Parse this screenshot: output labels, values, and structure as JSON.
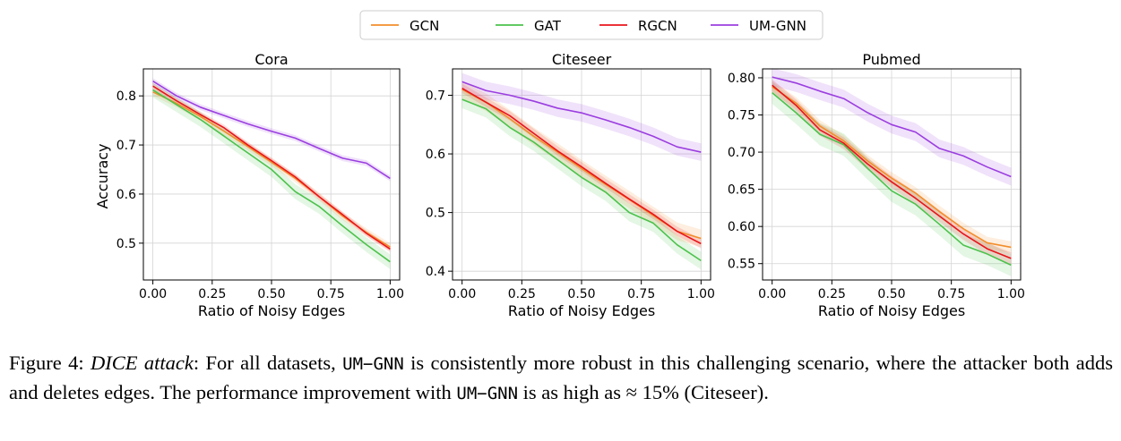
{
  "legend": {
    "entries": [
      {
        "name": "GCN",
        "color": "#f28e2b"
      },
      {
        "name": "GAT",
        "color": "#4cc24c"
      },
      {
        "name": "RGCN",
        "color": "#e8141b"
      },
      {
        "name": "UM-GNN",
        "color": "#9b3ee0"
      }
    ]
  },
  "chart_data": [
    {
      "type": "line",
      "title": "Cora",
      "xlabel": "Ratio of Noisy Edges",
      "ylabel": "Accuracy",
      "xlim": [
        -0.04,
        1.04
      ],
      "ylim": [
        0.425,
        0.855
      ],
      "xticks": [
        "0.00",
        "0.25",
        "0.50",
        "0.75",
        "1.00"
      ],
      "yticks": [
        "0.5",
        "0.6",
        "0.7",
        "0.8"
      ],
      "grid": true,
      "x": [
        0.0,
        0.1,
        0.2,
        0.3,
        0.4,
        0.5,
        0.6,
        0.7,
        0.8,
        0.9,
        1.0
      ],
      "series": [
        {
          "name": "GCN",
          "values": [
            0.808,
            0.785,
            0.758,
            0.728,
            0.697,
            0.665,
            0.632,
            0.595,
            0.555,
            0.522,
            0.492
          ],
          "band": 0.008
        },
        {
          "name": "GAT",
          "values": [
            0.812,
            0.782,
            0.752,
            0.718,
            0.684,
            0.65,
            0.605,
            0.575,
            0.535,
            0.497,
            0.462
          ],
          "band": 0.015
        },
        {
          "name": "RGCN",
          "values": [
            0.82,
            0.79,
            0.762,
            0.735,
            0.7,
            0.668,
            0.635,
            0.595,
            0.558,
            0.52,
            0.488
          ],
          "band": 0.006
        },
        {
          "name": "UM-GNN",
          "values": [
            0.83,
            0.8,
            0.777,
            0.76,
            0.743,
            0.728,
            0.714,
            0.693,
            0.673,
            0.663,
            0.632
          ],
          "band": 0.006
        }
      ]
    },
    {
      "type": "line",
      "title": "Citeseer",
      "xlabel": "Ratio of Noisy Edges",
      "ylabel": "",
      "xlim": [
        -0.04,
        1.04
      ],
      "ylim": [
        0.385,
        0.745
      ],
      "xticks": [
        "0.00",
        "0.25",
        "0.50",
        "0.75",
        "1.00"
      ],
      "yticks": [
        "0.4",
        "0.5",
        "0.6",
        "0.7"
      ],
      "grid": true,
      "x": [
        0.0,
        0.1,
        0.2,
        0.3,
        0.4,
        0.5,
        0.6,
        0.7,
        0.8,
        0.9,
        1.0
      ],
      "series": [
        {
          "name": "GCN",
          "values": [
            0.71,
            0.688,
            0.66,
            0.63,
            0.603,
            0.575,
            0.548,
            0.522,
            0.495,
            0.468,
            0.456
          ],
          "band": 0.015
        },
        {
          "name": "GAT",
          "values": [
            0.693,
            0.677,
            0.645,
            0.62,
            0.59,
            0.56,
            0.535,
            0.5,
            0.482,
            0.445,
            0.418
          ],
          "band": 0.015
        },
        {
          "name": "RGCN",
          "values": [
            0.712,
            0.688,
            0.665,
            0.635,
            0.605,
            0.578,
            0.55,
            0.523,
            0.497,
            0.468,
            0.447
          ],
          "band": 0.008
        },
        {
          "name": "UM-GNN",
          "values": [
            0.723,
            0.708,
            0.7,
            0.69,
            0.678,
            0.67,
            0.658,
            0.645,
            0.63,
            0.612,
            0.603
          ],
          "band": 0.015
        }
      ]
    },
    {
      "type": "line",
      "title": "Pubmed",
      "xlabel": "Ratio of Noisy Edges",
      "ylabel": "",
      "xlim": [
        -0.04,
        1.04
      ],
      "ylim": [
        0.528,
        0.812
      ],
      "xticks": [
        "0.00",
        "0.25",
        "0.50",
        "0.75",
        "1.00"
      ],
      "yticks": [
        "0.55",
        "0.60",
        "0.65",
        "0.70",
        "0.75",
        "0.80"
      ],
      "grid": true,
      "x": [
        0.0,
        0.1,
        0.2,
        0.3,
        0.4,
        0.5,
        0.6,
        0.7,
        0.8,
        0.9,
        1.0
      ],
      "series": [
        {
          "name": "GCN",
          "values": [
            0.788,
            0.766,
            0.735,
            0.715,
            0.688,
            0.665,
            0.645,
            0.62,
            0.597,
            0.578,
            0.572
          ],
          "band": 0.008
        },
        {
          "name": "GAT",
          "values": [
            0.78,
            0.753,
            0.724,
            0.71,
            0.678,
            0.648,
            0.63,
            0.603,
            0.575,
            0.563,
            0.548
          ],
          "band": 0.015
        },
        {
          "name": "RGCN",
          "values": [
            0.79,
            0.763,
            0.73,
            0.712,
            0.684,
            0.66,
            0.638,
            0.614,
            0.59,
            0.57,
            0.557
          ],
          "band": 0.008
        },
        {
          "name": "UM-GNN",
          "values": [
            0.801,
            0.793,
            0.782,
            0.772,
            0.753,
            0.737,
            0.727,
            0.705,
            0.695,
            0.68,
            0.667
          ],
          "band": 0.012
        }
      ]
    }
  ],
  "caption": {
    "label": "Figure 4:",
    "attack_name": "DICE attack",
    "part1": ": For all datasets, ",
    "model1": "UM−GNN",
    "part2": " is consistently more robust in this challenging scenario, where the attacker both adds and deletes edges. The performance improvement with ",
    "model2": "UM−GNN",
    "part3": " is as high as ≈ 15% (Citeseer)."
  }
}
